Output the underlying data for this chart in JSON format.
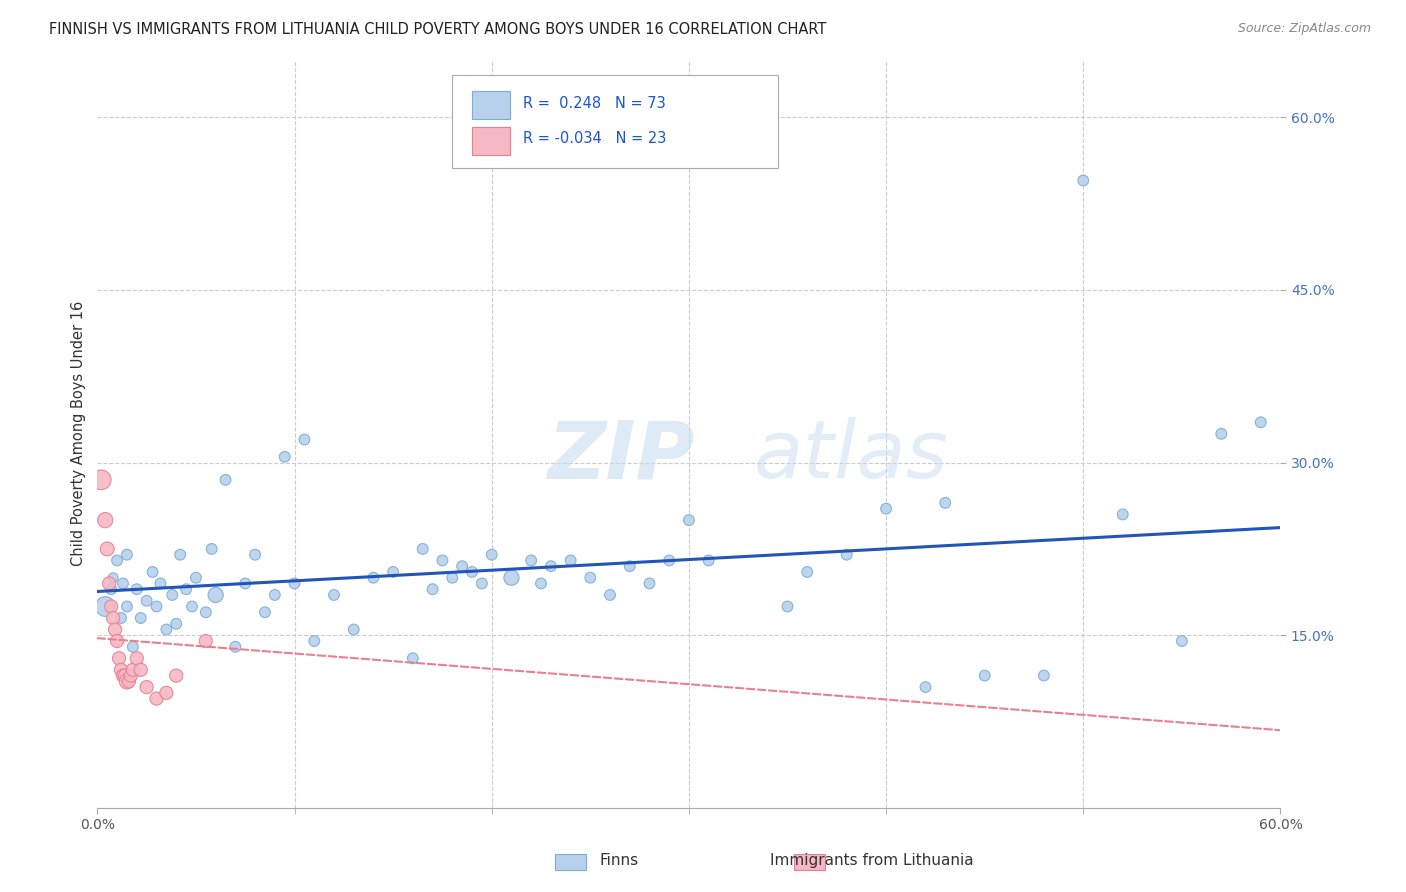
{
  "title": "FINNISH VS IMMIGRANTS FROM LITHUANIA CHILD POVERTY AMONG BOYS UNDER 16 CORRELATION CHART",
  "source": "Source: ZipAtlas.com",
  "ylabel": "Child Poverty Among Boys Under 16",
  "xlim": [
    0.0,
    0.6
  ],
  "ylim": [
    0.0,
    0.65
  ],
  "yticks_right": [
    0.15,
    0.3,
    0.45,
    0.6
  ],
  "ytick_right_labels": [
    "15.0%",
    "30.0%",
    "45.0%",
    "60.0%"
  ],
  "xtick_labels_show": [
    "0.0%",
    "60.0%"
  ],
  "xtick_positions_show": [
    0.0,
    0.6
  ],
  "grid_xticks": [
    0.1,
    0.2,
    0.3,
    0.4,
    0.5
  ],
  "grid_color": "#cccccc",
  "background_color": "#ffffff",
  "finns_color": "#b8d0ec",
  "finns_edge_color": "#7aafd4",
  "immigrants_color": "#f5b8c4",
  "immigrants_edge_color": "#e88090",
  "trendline_finns_color": "#2255bb",
  "trendline_immigrants_color": "#e88090",
  "finns_R": 0.248,
  "finns_N": 73,
  "immigrants_R": -0.034,
  "immigrants_N": 23,
  "finns_x": [
    0.004,
    0.007,
    0.008,
    0.01,
    0.012,
    0.013,
    0.015,
    0.015,
    0.018,
    0.02,
    0.022,
    0.025,
    0.028,
    0.03,
    0.032,
    0.035,
    0.038,
    0.04,
    0.042,
    0.045,
    0.048,
    0.05,
    0.055,
    0.058,
    0.06,
    0.065,
    0.07,
    0.075,
    0.08,
    0.085,
    0.09,
    0.095,
    0.1,
    0.105,
    0.11,
    0.12,
    0.13,
    0.14,
    0.15,
    0.16,
    0.165,
    0.17,
    0.175,
    0.18,
    0.185,
    0.19,
    0.195,
    0.2,
    0.21,
    0.22,
    0.225,
    0.23,
    0.24,
    0.25,
    0.26,
    0.27,
    0.28,
    0.29,
    0.3,
    0.31,
    0.35,
    0.36,
    0.38,
    0.4,
    0.42,
    0.43,
    0.45,
    0.48,
    0.5,
    0.52,
    0.55,
    0.57,
    0.59
  ],
  "finns_y": [
    0.175,
    0.19,
    0.2,
    0.215,
    0.165,
    0.195,
    0.175,
    0.22,
    0.14,
    0.19,
    0.165,
    0.18,
    0.205,
    0.175,
    0.195,
    0.155,
    0.185,
    0.16,
    0.22,
    0.19,
    0.175,
    0.2,
    0.17,
    0.225,
    0.185,
    0.285,
    0.14,
    0.195,
    0.22,
    0.17,
    0.185,
    0.305,
    0.195,
    0.32,
    0.145,
    0.185,
    0.155,
    0.2,
    0.205,
    0.13,
    0.225,
    0.19,
    0.215,
    0.2,
    0.21,
    0.205,
    0.195,
    0.22,
    0.2,
    0.215,
    0.195,
    0.21,
    0.215,
    0.2,
    0.185,
    0.21,
    0.195,
    0.215,
    0.25,
    0.215,
    0.175,
    0.205,
    0.22,
    0.26,
    0.105,
    0.265,
    0.115,
    0.115,
    0.545,
    0.255,
    0.145,
    0.325,
    0.335
  ],
  "finns_size": [
    200,
    60,
    50,
    60,
    60,
    60,
    60,
    60,
    60,
    60,
    60,
    60,
    60,
    60,
    60,
    60,
    60,
    60,
    60,
    60,
    60,
    60,
    60,
    60,
    120,
    60,
    60,
    60,
    60,
    60,
    60,
    60,
    60,
    60,
    60,
    60,
    60,
    60,
    60,
    60,
    60,
    60,
    60,
    60,
    60,
    60,
    60,
    60,
    120,
    60,
    60,
    60,
    60,
    60,
    60,
    60,
    60,
    60,
    60,
    60,
    60,
    60,
    60,
    60,
    60,
    60,
    60,
    60,
    60,
    60,
    60,
    60,
    60
  ],
  "immigrants_x": [
    0.002,
    0.004,
    0.005,
    0.006,
    0.007,
    0.008,
    0.009,
    0.01,
    0.011,
    0.012,
    0.013,
    0.014,
    0.015,
    0.016,
    0.017,
    0.018,
    0.02,
    0.022,
    0.025,
    0.03,
    0.035,
    0.04,
    0.055
  ],
  "immigrants_y": [
    0.285,
    0.25,
    0.225,
    0.195,
    0.175,
    0.165,
    0.155,
    0.145,
    0.13,
    0.12,
    0.115,
    0.115,
    0.11,
    0.11,
    0.115,
    0.12,
    0.13,
    0.12,
    0.105,
    0.095,
    0.1,
    0.115,
    0.145
  ],
  "immigrants_size": [
    200,
    120,
    100,
    90,
    90,
    90,
    90,
    90,
    90,
    90,
    90,
    90,
    120,
    90,
    90,
    90,
    90,
    90,
    90,
    90,
    90,
    90,
    90
  ]
}
